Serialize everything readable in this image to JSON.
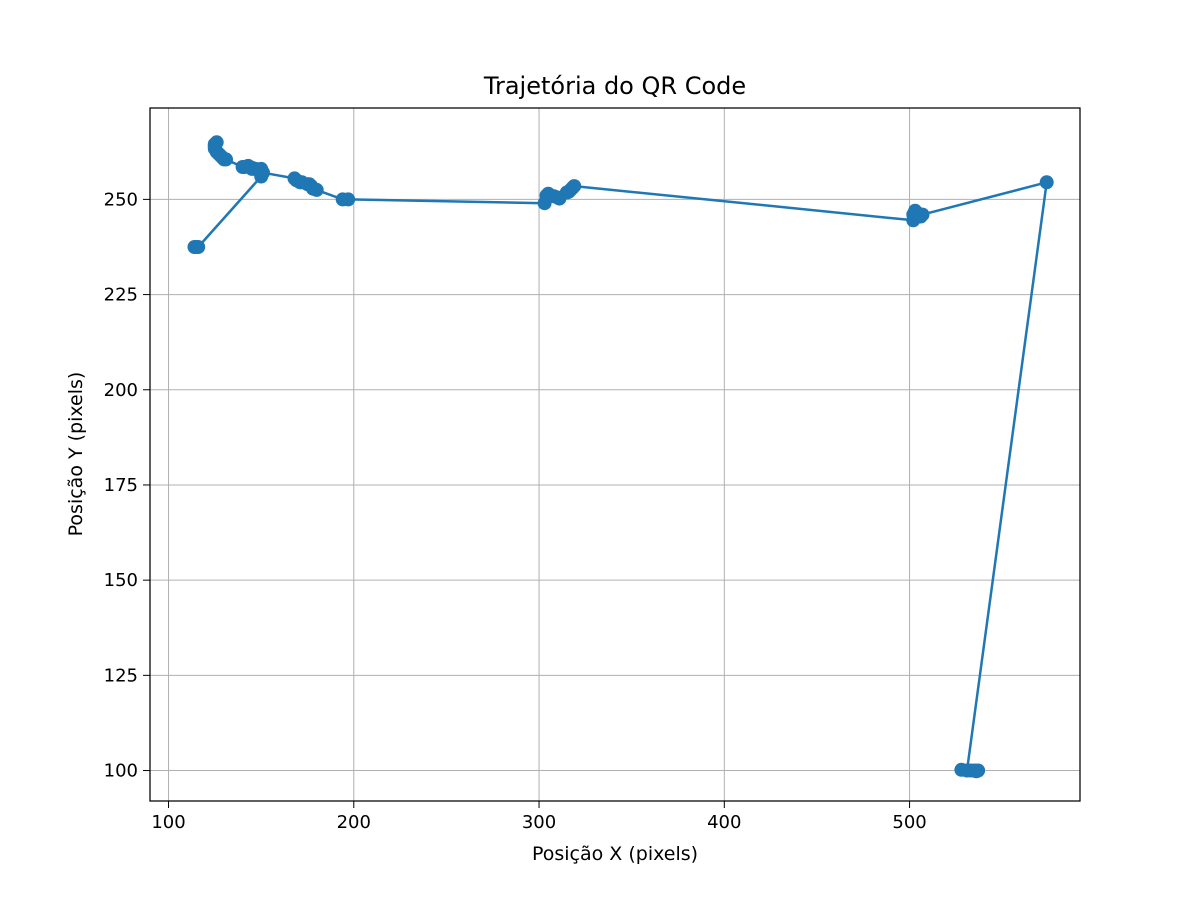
{
  "chart_data": {
    "type": "line",
    "title": "Trajetória do QR Code",
    "xlabel": "Posição X (pixels)",
    "ylabel": "Posição Y (pixels)",
    "xlim": [
      90,
      592
    ],
    "ylim": [
      92,
      274
    ],
    "x_ticks": [
      100,
      200,
      300,
      400,
      500
    ],
    "y_ticks": [
      100,
      125,
      150,
      175,
      200,
      225,
      250
    ],
    "grid": true,
    "marker": "circle",
    "series": [
      {
        "color": "#1f77b4",
        "points": [
          [
            115,
            237.5
          ],
          [
            114,
            237.5
          ],
          [
            116,
            237.5
          ],
          [
            150,
            256.0
          ],
          [
            150,
            257.0
          ],
          [
            149,
            257.5
          ],
          [
            147,
            258.0
          ],
          [
            150,
            258.0
          ],
          [
            145,
            258.3
          ],
          [
            143,
            258.8
          ],
          [
            141,
            258.5
          ],
          [
            130,
            260.5
          ],
          [
            128,
            261.5
          ],
          [
            126,
            262.5
          ],
          [
            125,
            263.3
          ],
          [
            125,
            264.0
          ],
          [
            125,
            264.5
          ],
          [
            126,
            265.0
          ],
          [
            125,
            264.0
          ],
          [
            126,
            262.5
          ],
          [
            127,
            262.0
          ],
          [
            129,
            261.0
          ],
          [
            131,
            260.5
          ],
          [
            140,
            258.5
          ],
          [
            145,
            258.0
          ],
          [
            149,
            257.8
          ],
          [
            151,
            257.0
          ],
          [
            168,
            255.5
          ],
          [
            169,
            255.0
          ],
          [
            171,
            254.5
          ],
          [
            172,
            254.5
          ],
          [
            175,
            254.0
          ],
          [
            176,
            254.0
          ],
          [
            177,
            253.5
          ],
          [
            178,
            252.8
          ],
          [
            180,
            252.5
          ],
          [
            194,
            250.0
          ],
          [
            197,
            250.0
          ],
          [
            303,
            249.0
          ],
          [
            304,
            251.0
          ],
          [
            305,
            251.5
          ],
          [
            308,
            250.8
          ],
          [
            310,
            250.5
          ],
          [
            311,
            250.2
          ],
          [
            315,
            251.8
          ],
          [
            316,
            252.0
          ],
          [
            317,
            252.5
          ],
          [
            318,
            253.0
          ],
          [
            319,
            253.5
          ],
          [
            502,
            244.5
          ],
          [
            502,
            246.0
          ],
          [
            503,
            247.0
          ],
          [
            504,
            246.5
          ],
          [
            505,
            246.0
          ],
          [
            506,
            245.5
          ],
          [
            507,
            246.0
          ],
          [
            574,
            254.5
          ],
          [
            531,
            100.0
          ],
          [
            528,
            100.2
          ],
          [
            533,
            100.0
          ],
          [
            535,
            100.0
          ],
          [
            537,
            100.0
          ],
          [
            536,
            99.8
          ]
        ]
      }
    ]
  }
}
